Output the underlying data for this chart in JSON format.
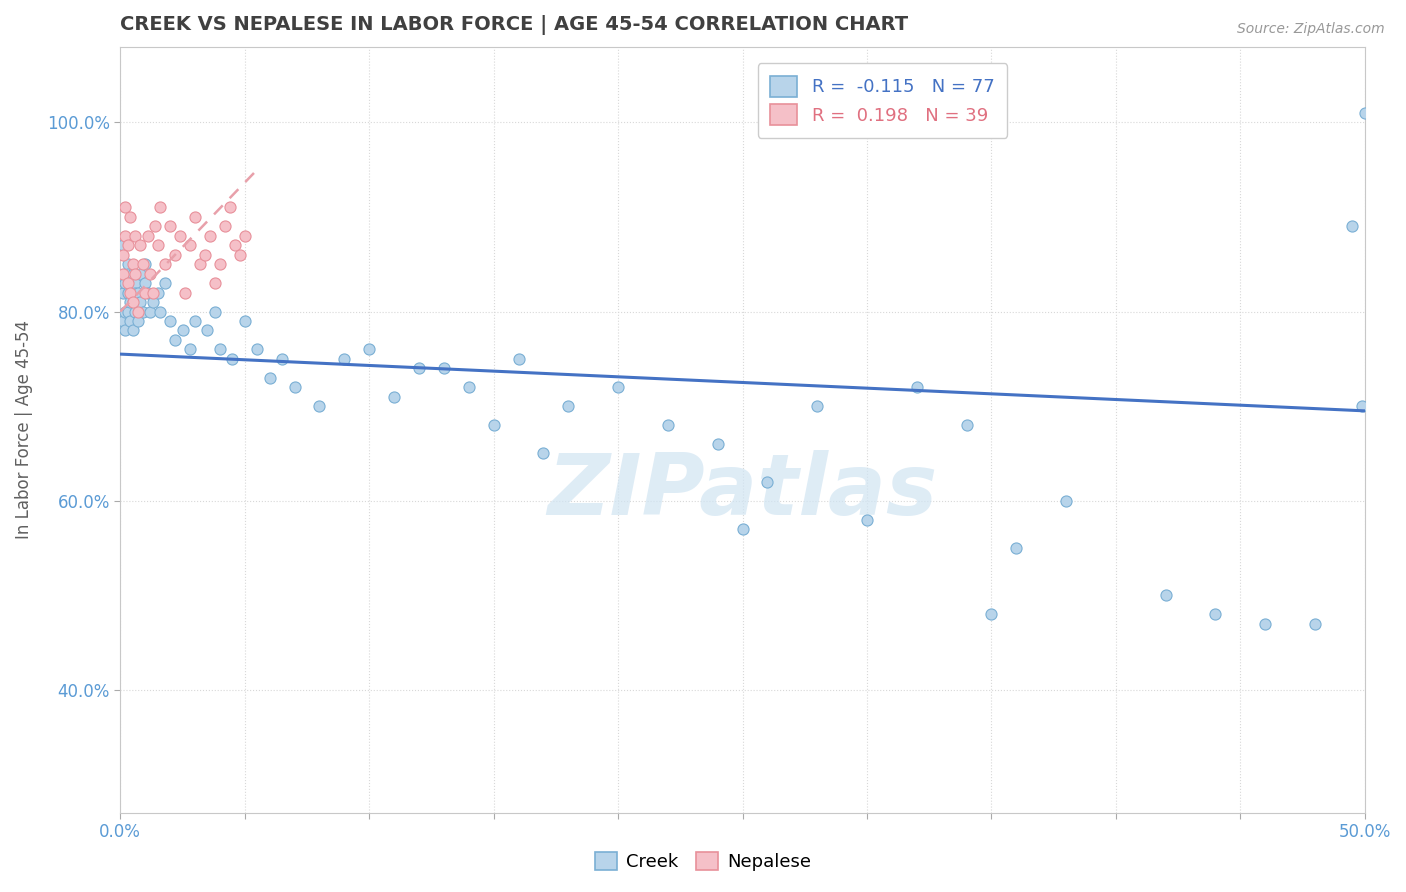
{
  "title": "CREEK VS NEPALESE IN LABOR FORCE | AGE 45-54 CORRELATION CHART",
  "source": "Source: ZipAtlas.com",
  "ylabel": "In Labor Force | Age 45-54",
  "xlim": [
    0.0,
    0.5
  ],
  "ylim": [
    0.27,
    1.08
  ],
  "xticks": [
    0.0,
    0.05,
    0.1,
    0.15,
    0.2,
    0.25,
    0.3,
    0.35,
    0.4,
    0.45,
    0.5
  ],
  "xticklabels": [
    "0.0%",
    "",
    "",
    "",
    "",
    "",
    "",
    "",
    "",
    "",
    "50.0%"
  ],
  "yticks": [
    0.4,
    0.6,
    0.8,
    1.0
  ],
  "yticklabels": [
    "40.0%",
    "60.0%",
    "80.0%",
    "100.0%"
  ],
  "creek_color": "#b8d4ea",
  "creek_edge_color": "#7aafd4",
  "nepalese_color": "#f5c0c8",
  "nepalese_edge_color": "#e8909a",
  "creek_line_color": "#4472c4",
  "nepalese_line_color": "#e8a0aa",
  "legend_R_creek": "-0.115",
  "legend_N_creek": "77",
  "legend_R_nepalese": "0.198",
  "legend_N_nepalese": "39",
  "creek_x": [
    0.001,
    0.001,
    0.001,
    0.002,
    0.002,
    0.002,
    0.002,
    0.003,
    0.003,
    0.003,
    0.003,
    0.004,
    0.004,
    0.004,
    0.005,
    0.005,
    0.005,
    0.006,
    0.006,
    0.006,
    0.007,
    0.007,
    0.008,
    0.008,
    0.009,
    0.01,
    0.01,
    0.011,
    0.012,
    0.013,
    0.015,
    0.016,
    0.018,
    0.02,
    0.022,
    0.025,
    0.028,
    0.03,
    0.035,
    0.038,
    0.04,
    0.045,
    0.05,
    0.055,
    0.06,
    0.065,
    0.07,
    0.08,
    0.09,
    0.1,
    0.11,
    0.12,
    0.13,
    0.14,
    0.15,
    0.16,
    0.17,
    0.18,
    0.2,
    0.22,
    0.24,
    0.26,
    0.28,
    0.3,
    0.32,
    0.34,
    0.36,
    0.38,
    0.25,
    0.5,
    0.42,
    0.44,
    0.46,
    0.35,
    0.48,
    0.495,
    0.499
  ],
  "creek_y": [
    0.82,
    0.87,
    0.79,
    0.84,
    0.8,
    0.83,
    0.78,
    0.82,
    0.85,
    0.8,
    0.84,
    0.81,
    0.83,
    0.79,
    0.84,
    0.81,
    0.78,
    0.83,
    0.8,
    0.82,
    0.82,
    0.79,
    0.84,
    0.81,
    0.8,
    0.85,
    0.83,
    0.82,
    0.8,
    0.81,
    0.82,
    0.8,
    0.83,
    0.79,
    0.77,
    0.78,
    0.76,
    0.79,
    0.78,
    0.8,
    0.76,
    0.75,
    0.79,
    0.76,
    0.73,
    0.75,
    0.72,
    0.7,
    0.75,
    0.76,
    0.71,
    0.74,
    0.74,
    0.72,
    0.68,
    0.75,
    0.65,
    0.7,
    0.72,
    0.68,
    0.66,
    0.62,
    0.7,
    0.58,
    0.72,
    0.68,
    0.55,
    0.6,
    0.57,
    1.01,
    0.5,
    0.48,
    0.47,
    0.48,
    0.47,
    0.89,
    0.7
  ],
  "nepalese_x": [
    0.001,
    0.001,
    0.002,
    0.002,
    0.003,
    0.003,
    0.004,
    0.004,
    0.005,
    0.005,
    0.006,
    0.006,
    0.007,
    0.008,
    0.009,
    0.01,
    0.011,
    0.012,
    0.013,
    0.014,
    0.015,
    0.016,
    0.018,
    0.02,
    0.022,
    0.024,
    0.026,
    0.028,
    0.03,
    0.032,
    0.034,
    0.036,
    0.038,
    0.04,
    0.042,
    0.044,
    0.046,
    0.048,
    0.05
  ],
  "nepalese_y": [
    0.86,
    0.84,
    0.91,
    0.88,
    0.83,
    0.87,
    0.82,
    0.9,
    0.85,
    0.81,
    0.88,
    0.84,
    0.8,
    0.87,
    0.85,
    0.82,
    0.88,
    0.84,
    0.82,
    0.89,
    0.87,
    0.91,
    0.85,
    0.89,
    0.86,
    0.88,
    0.82,
    0.87,
    0.9,
    0.85,
    0.86,
    0.88,
    0.83,
    0.85,
    0.89,
    0.91,
    0.87,
    0.86,
    0.88
  ],
  "creek_trend_x0": 0.0,
  "creek_trend_x1": 0.5,
  "creek_trend_y0": 0.755,
  "creek_trend_y1": 0.695,
  "nepalese_trend_x0": 0.0,
  "nepalese_trend_x1": 0.055,
  "nepalese_trend_y0": 0.8,
  "nepalese_trend_y1": 0.95,
  "background_color": "#ffffff",
  "grid_color": "#d8d8d8",
  "title_color": "#404040",
  "tick_color": "#5b9bd5",
  "marker_size": 8,
  "watermark_text": "ZIPatlas",
  "watermark_color": "#d0e4f2"
}
